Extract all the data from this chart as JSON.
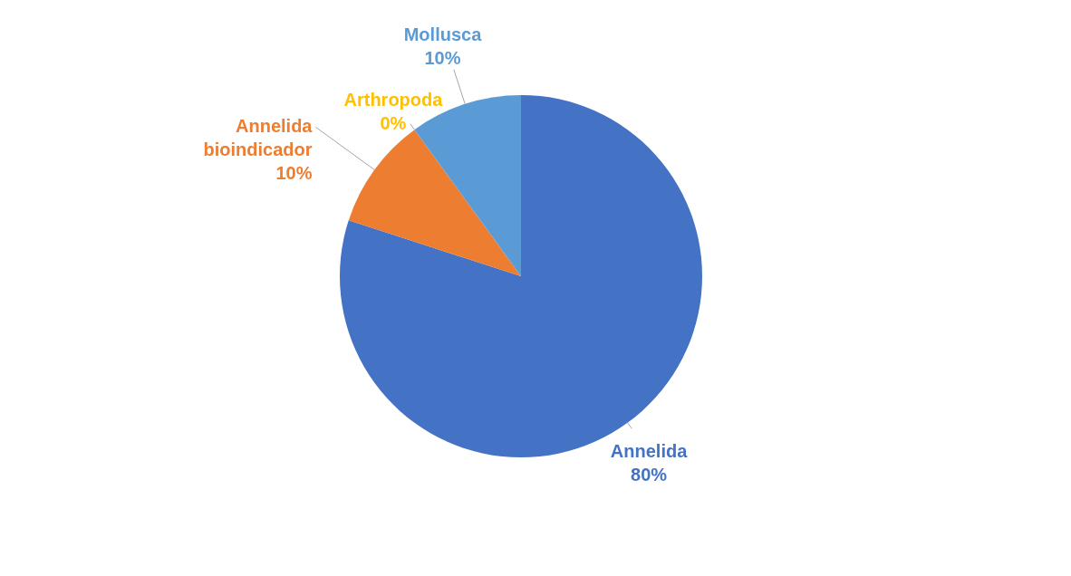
{
  "chart_data": {
    "type": "pie",
    "categories": [
      "Annelida",
      "Annelida bioindicador",
      "Arthropoda",
      "Mollusca"
    ],
    "values": [
      80,
      10,
      0,
      10
    ],
    "colors": [
      "#4472c4",
      "#ed7d31",
      "#ffc000",
      "#5b9bd5"
    ],
    "value_labels": [
      "80%",
      "10%",
      "0%",
      "10%"
    ],
    "legend": false
  }
}
